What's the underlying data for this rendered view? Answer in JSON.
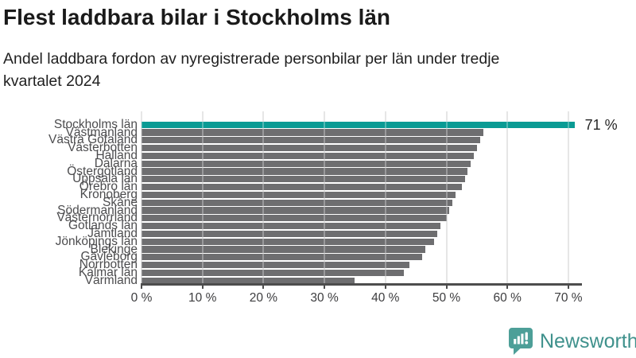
{
  "page": {
    "title": "Flest laddbara bilar i Stockholms län",
    "subtitle_line1": "Andel laddbara fordon av nyregistrerade personbilar per län under tredje",
    "subtitle_line2": "kvartalet 2024"
  },
  "chart_data": {
    "type": "bar",
    "orientation": "horizontal",
    "title": "Flest laddbara bilar i Stockholms län",
    "subtitle": "Andel laddbara fordon av nyregistrerade personbilar per län under tredje kvartalet 2024",
    "categories": [
      "Stockholms län",
      "Västmanland",
      "Västra Götaland",
      "Västerbotten",
      "Halland",
      "Dalarna",
      "Östergötland",
      "Uppsala län",
      "Örebro län",
      "Kronoberg",
      "Skåne",
      "Södermanland",
      "Västernorrland",
      "Gotlands län",
      "Jämtland",
      "Jönköpings län",
      "Blekinge",
      "Gävleborg",
      "Norrbotten",
      "Kalmar län",
      "Värmland"
    ],
    "values": [
      71,
      56,
      55.5,
      55,
      54.5,
      54,
      53.5,
      53,
      52.5,
      51.5,
      51,
      50.5,
      50,
      49,
      48.5,
      48,
      46.5,
      46,
      44,
      43,
      35
    ],
    "unit": "%",
    "highlight_category": "Stockholms län",
    "highlight_color": "#0a9b94",
    "bar_color": "#6e6e70",
    "annotation": {
      "category": "Stockholms län",
      "label": "71 %"
    },
    "x_ticks": [
      "0 %",
      "10 %",
      "20 %",
      "30 %",
      "40 %",
      "50 %",
      "60 %",
      "70 %"
    ],
    "x_tick_values": [
      0,
      10,
      20,
      30,
      40,
      50,
      60,
      70
    ],
    "xlim": [
      0,
      71.5
    ],
    "grid": "vertical",
    "gridline_color": "#dcdcdc",
    "axis_color": "#4d4d4d",
    "label_color": "#4c4c4e",
    "legend": "none"
  },
  "footer": {
    "brand": "Newsworthy",
    "brand_color": "#3f918c",
    "icon": "newsworthy-chart-bubble-icon",
    "icon_color": "#4d9f98"
  }
}
